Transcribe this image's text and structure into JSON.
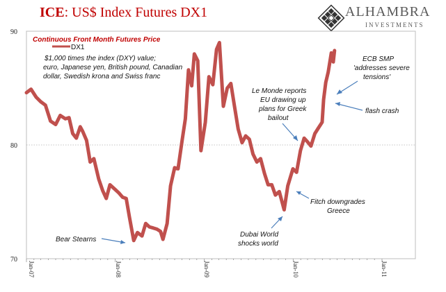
{
  "title": {
    "ice": "ICE",
    "rest": ": US$ Index Futures DX1"
  },
  "logo": {
    "name": "ALHAMBRA",
    "sub": "INVESTMENTS"
  },
  "colors": {
    "line": "#c0504d",
    "title": "#c00000",
    "arrow": "#4a7ebb"
  },
  "chart_data": {
    "type": "line",
    "subtitle": "Continuous Front Month Futures Price",
    "legend": {
      "position": "top-left"
    },
    "description_lines": [
      "$1,000 times the index (DXY) value;",
      "euro, Japanese yen, British pound, Canadian",
      "dollar, Swedish krona and Swiss franc"
    ],
    "ylim": [
      70,
      90
    ],
    "yticks": [
      70,
      80,
      90
    ],
    "xticks": [
      "Jan-07",
      "Jan-08",
      "Jan-09",
      "Jan-10",
      "Jan-11"
    ],
    "grid": {
      "horizontal_at": [
        80
      ]
    },
    "series": [
      {
        "name": "DX1",
        "points": [
          [
            "2007-01-01",
            84.6
          ],
          [
            "2007-01-20",
            84.9
          ],
          [
            "2007-02-10",
            84.2
          ],
          [
            "2007-03-01",
            83.8
          ],
          [
            "2007-03-20",
            83.5
          ],
          [
            "2007-04-10",
            82.1
          ],
          [
            "2007-05-01",
            81.8
          ],
          [
            "2007-05-20",
            82.6
          ],
          [
            "2007-06-10",
            82.3
          ],
          [
            "2007-06-25",
            82.4
          ],
          [
            "2007-07-10",
            81.0
          ],
          [
            "2007-07-25",
            80.6
          ],
          [
            "2007-08-10",
            81.6
          ],
          [
            "2007-08-20",
            81.2
          ],
          [
            "2007-09-05",
            80.4
          ],
          [
            "2007-09-20",
            78.5
          ],
          [
            "2007-10-05",
            78.8
          ],
          [
            "2007-10-25",
            77.0
          ],
          [
            "2007-11-10",
            76.0
          ],
          [
            "2007-11-25",
            75.3
          ],
          [
            "2007-12-10",
            76.5
          ],
          [
            "2007-12-31",
            76.1
          ],
          [
            "2008-01-15",
            75.8
          ],
          [
            "2008-01-31",
            75.4
          ],
          [
            "2008-02-15",
            75.3
          ],
          [
            "2008-02-28",
            73.7
          ],
          [
            "2008-03-17",
            71.6
          ],
          [
            "2008-04-01",
            72.3
          ],
          [
            "2008-04-20",
            72.0
          ],
          [
            "2008-05-05",
            73.1
          ],
          [
            "2008-05-20",
            72.8
          ],
          [
            "2008-06-05",
            72.7
          ],
          [
            "2008-06-20",
            72.6
          ],
          [
            "2008-07-05",
            72.4
          ],
          [
            "2008-07-15",
            71.7
          ],
          [
            "2008-08-01",
            73.1
          ],
          [
            "2008-08-15",
            76.4
          ],
          [
            "2008-09-01",
            78.0
          ],
          [
            "2008-09-15",
            77.9
          ],
          [
            "2008-10-01",
            80.3
          ],
          [
            "2008-10-15",
            82.3
          ],
          [
            "2008-10-28",
            86.6
          ],
          [
            "2008-11-10",
            85.2
          ],
          [
            "2008-11-21",
            88.0
          ],
          [
            "2008-12-05",
            87.4
          ],
          [
            "2008-12-18",
            79.5
          ],
          [
            "2009-01-05",
            82.0
          ],
          [
            "2009-01-20",
            86.0
          ],
          [
            "2009-02-05",
            85.3
          ],
          [
            "2009-02-20",
            88.4
          ],
          [
            "2009-03-04",
            89.0
          ],
          [
            "2009-03-20",
            83.4
          ],
          [
            "2009-04-05",
            85.0
          ],
          [
            "2009-04-20",
            85.4
          ],
          [
            "2009-05-05",
            83.4
          ],
          [
            "2009-05-20",
            81.4
          ],
          [
            "2009-06-05",
            80.2
          ],
          [
            "2009-06-20",
            80.8
          ],
          [
            "2009-07-05",
            80.5
          ],
          [
            "2009-07-20",
            79.2
          ],
          [
            "2009-08-05",
            78.5
          ],
          [
            "2009-08-20",
            78.8
          ],
          [
            "2009-09-05",
            77.5
          ],
          [
            "2009-09-20",
            76.5
          ],
          [
            "2009-10-05",
            76.5
          ],
          [
            "2009-10-20",
            75.6
          ],
          [
            "2009-11-05",
            75.9
          ],
          [
            "2009-11-25",
            74.3
          ],
          [
            "2009-12-10",
            76.4
          ],
          [
            "2009-12-31",
            77.9
          ],
          [
            "2010-01-15",
            77.6
          ],
          [
            "2010-01-31",
            79.5
          ],
          [
            "2010-02-15",
            80.6
          ],
          [
            "2010-02-28",
            80.3
          ],
          [
            "2010-03-15",
            79.9
          ],
          [
            "2010-03-31",
            81.0
          ],
          [
            "2010-04-15",
            81.5
          ],
          [
            "2010-04-30",
            82.0
          ],
          [
            "2010-05-06",
            84.0
          ],
          [
            "2010-05-15",
            85.5
          ],
          [
            "2010-05-25",
            86.4
          ],
          [
            "2010-06-07",
            88.1
          ],
          [
            "2010-06-15",
            87.3
          ],
          [
            "2010-06-20",
            88.3
          ]
        ]
      }
    ],
    "annotations": [
      {
        "id": "bear-stearns",
        "lines": [
          "Bear Stearns"
        ]
      },
      {
        "id": "le-monde",
        "lines": [
          "Le Monde reports",
          "EU drawing up",
          "plans for Greek",
          "bailout"
        ]
      },
      {
        "id": "ecb-smp",
        "lines": [
          "ECB SMP",
          "'addresses severe",
          "tensions'"
        ]
      },
      {
        "id": "flash-crash",
        "lines": [
          "flash crash"
        ]
      },
      {
        "id": "fitch",
        "lines": [
          "Fitch downgrades",
          "Greece"
        ]
      },
      {
        "id": "dubai",
        "lines": [
          "Dubai World",
          "shocks world"
        ]
      }
    ]
  }
}
